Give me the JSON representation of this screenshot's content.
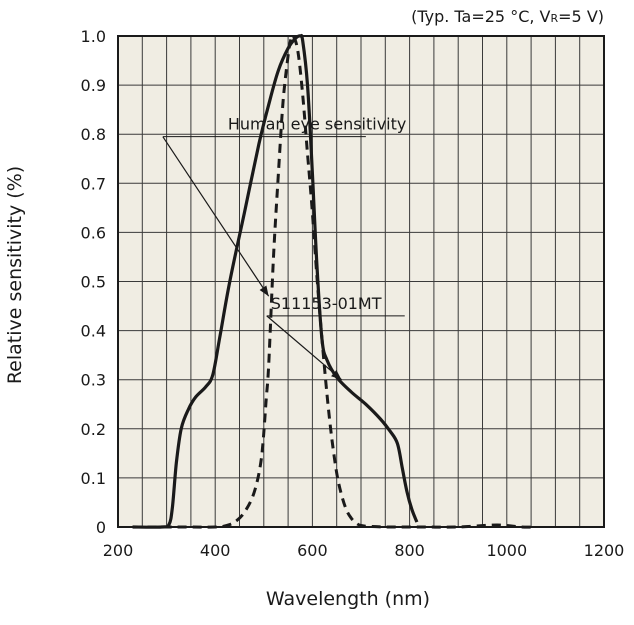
{
  "chart_data": {
    "type": "line",
    "note_prefix": "(Typ. Ta=25 °C, V",
    "note_sub": "R",
    "note_suffix": "=5 V)",
    "xlabel": "Wavelength (nm)",
    "ylabel": "Relative sensitivity (%)",
    "xlim": [
      200,
      1200
    ],
    "ylim": [
      0,
      1.0
    ],
    "x_ticks": [
      200,
      400,
      600,
      800,
      1000,
      1200
    ],
    "x_tick_labels": [
      "200",
      "400",
      "600",
      "800",
      "1000",
      "1200"
    ],
    "y_ticks": [
      0,
      0.1,
      0.2,
      0.3,
      0.4,
      0.5,
      0.6,
      0.7,
      0.8,
      0.9,
      1.0
    ],
    "y_tick_labels": [
      "0",
      "0.1",
      "0.2",
      "0.3",
      "0.4",
      "0.5",
      "0.6",
      "0.7",
      "0.8",
      "0.9",
      "1.0"
    ],
    "grid": true,
    "plot_background": "#f0ede3",
    "series": [
      {
        "name": "S11153-01MT",
        "style": "solid",
        "color": "#1a1a1a",
        "x": [
          230,
          290,
          305,
          312,
          320,
          330,
          345,
          360,
          380,
          395,
          410,
          430,
          460,
          490,
          510,
          530,
          550,
          565,
          575,
          580,
          590,
          600,
          610,
          620,
          630,
          650,
          680,
          710,
          740,
          760,
          775,
          785,
          795,
          805,
          815
        ],
        "y": [
          0,
          0,
          0.005,
          0.04,
          0.13,
          0.2,
          0.24,
          0.265,
          0.285,
          0.31,
          0.39,
          0.5,
          0.64,
          0.78,
          0.86,
          0.93,
          0.975,
          0.995,
          1.0,
          0.99,
          0.9,
          0.72,
          0.52,
          0.38,
          0.34,
          0.305,
          0.275,
          0.25,
          0.22,
          0.195,
          0.17,
          0.12,
          0.07,
          0.035,
          0.01
        ]
      },
      {
        "name": "Human eye sensitivity",
        "style": "dashed",
        "color": "#1a1a1a",
        "x": [
          230,
          320,
          400,
          420,
          440,
          460,
          480,
          495,
          505,
          510,
          520,
          530,
          540,
          550,
          555,
          560,
          570,
          580,
          590,
          600,
          610,
          620,
          630,
          640,
          650,
          660,
          670,
          680,
          690,
          700,
          720,
          760,
          830,
          900,
          980,
          1030,
          1060
        ],
        "y": [
          0,
          0,
          0,
          0.002,
          0.01,
          0.03,
          0.07,
          0.14,
          0.26,
          0.33,
          0.55,
          0.72,
          0.87,
          0.96,
          0.99,
          1.0,
          0.97,
          0.88,
          0.76,
          0.64,
          0.5,
          0.38,
          0.27,
          0.18,
          0.11,
          0.065,
          0.035,
          0.018,
          0.008,
          0.003,
          0.001,
          0,
          0,
          0,
          0.004,
          0,
          0
        ]
      }
    ],
    "annotations": [
      {
        "text": "Human eye sensitivity",
        "points_to_series": "Human eye sensitivity"
      },
      {
        "text": "S11153-01MT",
        "points_to_series": "S11153-01MT"
      }
    ]
  }
}
